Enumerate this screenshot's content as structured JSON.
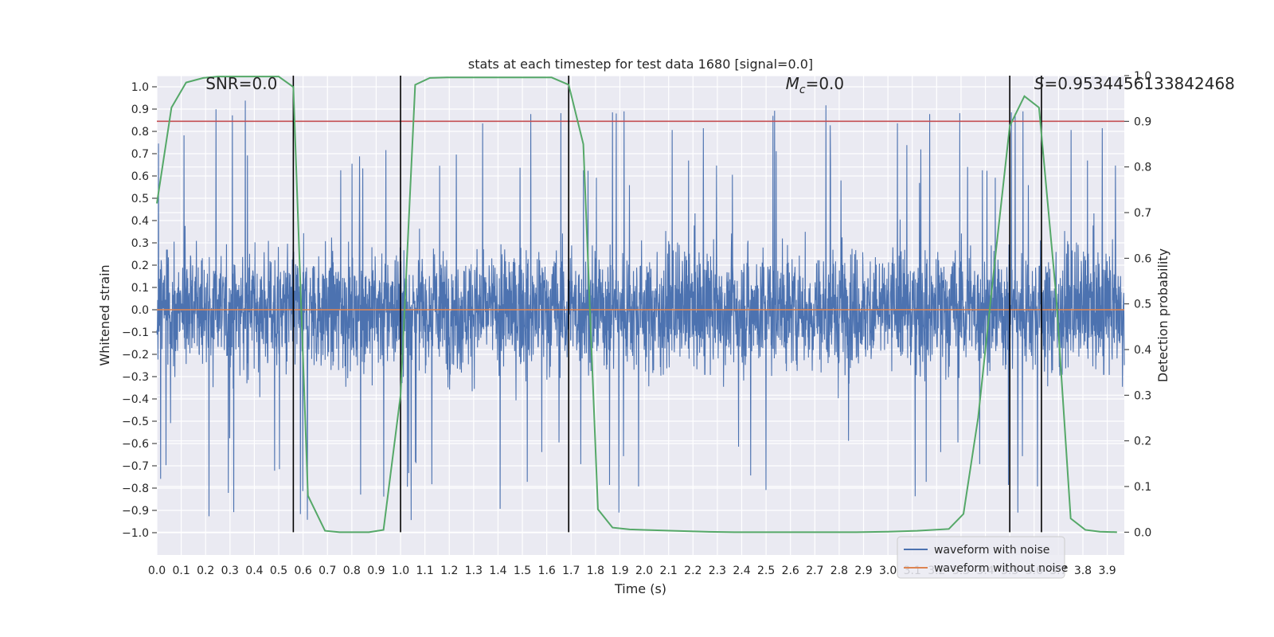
{
  "chart_data": {
    "type": "line",
    "title": "stats at each timestep for test data 1680 [signal=0.0]",
    "xlabel": "Time (s)",
    "ylabel": "Whitened strain",
    "y2label": "Detection probability",
    "xlim": [
      0.0,
      3.97
    ],
    "ylim": [
      -1.1,
      1.05
    ],
    "y2lim": [
      -0.05,
      1.0
    ],
    "xticks": [
      "0.0",
      "0.1",
      "0.2",
      "0.3",
      "0.4",
      "0.5",
      "0.6",
      "0.7",
      "0.8",
      "0.9",
      "1.0",
      "1.1",
      "1.2",
      "1.3",
      "1.4",
      "1.5",
      "1.6",
      "1.7",
      "1.8",
      "1.9",
      "2.0",
      "2.1",
      "2.2",
      "2.3",
      "2.4",
      "2.5",
      "2.6",
      "2.7",
      "2.8",
      "2.9",
      "3.0",
      "3.1",
      "3.2",
      "3.3",
      "3.4",
      "3.5",
      "3.6",
      "3.7",
      "3.8",
      "3.9"
    ],
    "yticks": [
      "1.0",
      "0.9",
      "0.8",
      "0.7",
      "0.6",
      "0.5",
      "0.4",
      "0.3",
      "0.2",
      "0.1",
      "0.0",
      "-0.1",
      "-0.2",
      "-0.3",
      "-0.4",
      "-0.5",
      "-0.6",
      "-0.7",
      "-0.8",
      "-0.9",
      "-1.0"
    ],
    "y2ticks": [
      "1.0",
      "0.9",
      "0.8",
      "0.7",
      "0.6",
      "0.5",
      "0.4",
      "0.3",
      "0.2",
      "0.1",
      "0.0"
    ],
    "annotations": [
      {
        "text": "SNR=0.0",
        "x": 0.2,
        "y": 0.99
      },
      {
        "text_main": "M",
        "text_sub": "c",
        "text_rest": "=0.0",
        "x": 2.58,
        "y": 0.99
      },
      {
        "text_main": "S",
        "text_rest": "=0.9534456133842468",
        "x": 3.6,
        "y": 0.99
      }
    ],
    "series": [
      {
        "name": "waveform with noise",
        "color": "#4c72b0",
        "kind": "noise",
        "amplitude_range": [
          -1.0,
          0.95
        ]
      },
      {
        "name": "waveform without noise",
        "color": "#dd8452",
        "x": [
          0.0,
          3.97
        ],
        "y": [
          0.0,
          0.0
        ]
      },
      {
        "color": "#55a868",
        "axis": "right",
        "x": [
          0.0,
          0.06,
          0.12,
          0.19,
          0.25,
          0.31,
          0.37,
          0.44,
          0.5,
          0.56,
          0.62,
          0.69,
          0.75,
          0.81,
          0.87,
          0.93,
          1.0,
          1.06,
          1.12,
          1.19,
          1.25,
          1.31,
          1.37,
          1.44,
          1.5,
          1.56,
          1.62,
          1.69,
          1.75,
          1.81,
          1.87,
          1.94,
          2.0,
          2.12,
          2.25,
          2.37,
          2.5,
          2.62,
          2.75,
          2.87,
          3.0,
          3.12,
          3.25,
          3.31,
          3.37,
          3.44,
          3.5,
          3.56,
          3.62,
          3.69,
          3.75,
          3.81,
          3.87,
          3.94
        ],
        "y": [
          0.72,
          0.93,
          0.985,
          0.995,
          0.998,
          0.998,
          0.998,
          0.998,
          0.998,
          0.975,
          0.08,
          0.003,
          0.0,
          0.0,
          0.0,
          0.005,
          0.3,
          0.98,
          0.995,
          0.996,
          0.996,
          0.996,
          0.996,
          0.996,
          0.996,
          0.996,
          0.996,
          0.98,
          0.85,
          0.05,
          0.01,
          0.006,
          0.005,
          0.003,
          0.001,
          0.0,
          0.0,
          0.0,
          0.0,
          0.0,
          0.001,
          0.003,
          0.007,
          0.04,
          0.25,
          0.6,
          0.89,
          0.955,
          0.93,
          0.52,
          0.03,
          0.005,
          0.001,
          0.0
        ]
      }
    ],
    "hlines_right": [
      {
        "y": 0.9,
        "color": "#c44e52"
      }
    ],
    "vlines": [
      0.56,
      1.0,
      1.69,
      3.5,
      3.63
    ],
    "legend": {
      "position": "lower right"
    },
    "grid": true,
    "style": {
      "background": "#eaeaf2",
      "grid_color": "#ffffff"
    }
  }
}
